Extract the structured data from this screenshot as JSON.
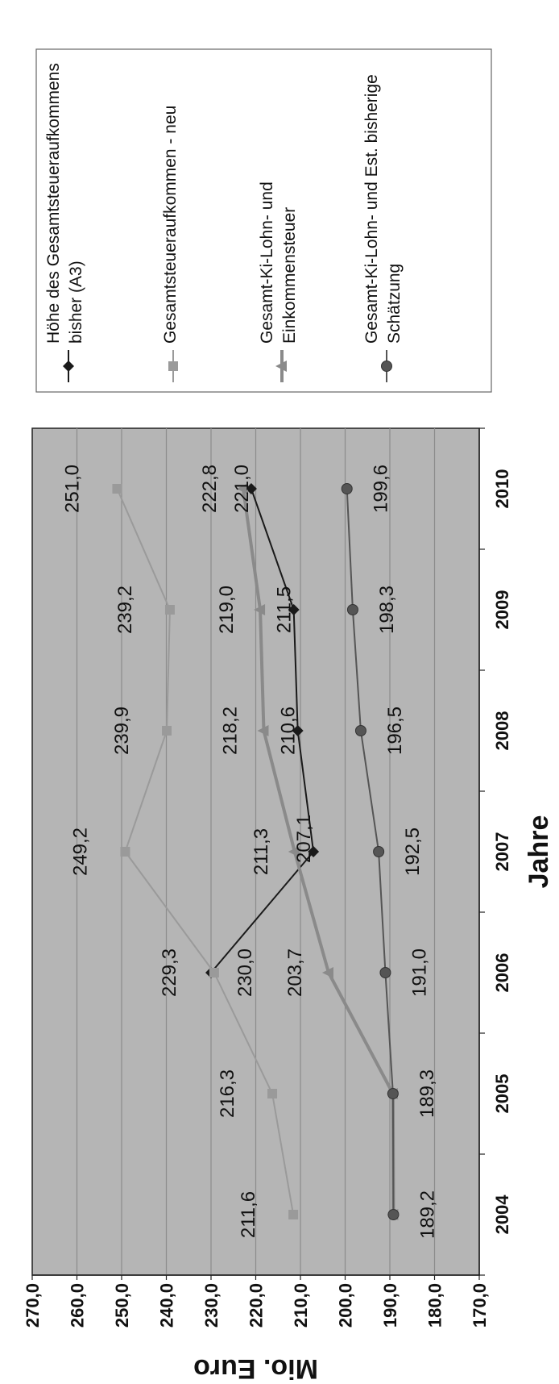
{
  "chart_data": {
    "type": "line",
    "title": "",
    "xlabel": "Jahre",
    "ylabel": "Mio. Euro",
    "ylim": [
      170,
      270
    ],
    "ytick_step": 10,
    "ytick_labels": [
      "170,0",
      "180,0",
      "190,0",
      "200,0",
      "210,0",
      "220,0",
      "230,0",
      "240,0",
      "250,0",
      "260,0",
      "270,0"
    ],
    "categories": [
      "2004",
      "2005",
      "2006",
      "2007",
      "2008",
      "2009",
      "2010"
    ],
    "grid": true,
    "plot_background": "#b5b5b5",
    "legend_position": "right",
    "series": [
      {
        "name": "Höhe des Gesamtsteueraufkommens bisher (A3)",
        "color": "#1a1a1a",
        "marker": "diamond",
        "values": [
          null,
          null,
          230.0,
          207.1,
          210.6,
          211.5,
          221.0
        ],
        "labels": [
          null,
          null,
          "230,0",
          "207,1",
          "210,6",
          "211,5",
          "221,0"
        ]
      },
      {
        "name": "Gesamtsteueraufkommen - neu",
        "color": "#9a9a9a",
        "marker": "square",
        "values": [
          211.6,
          216.3,
          229.3,
          249.2,
          239.9,
          239.2,
          251.0
        ],
        "labels": [
          "211,6",
          "216,3",
          "229,3",
          "249,2",
          "239,9",
          "239,2",
          "251,0"
        ]
      },
      {
        "name": "Gesamt-Ki-Lohn- und Einkommensteuer",
        "color": "#8a8a8a",
        "marker": "triangle",
        "values": [
          189.2,
          189.3,
          203.7,
          211.3,
          218.2,
          219.0,
          222.8
        ],
        "labels": [
          null,
          null,
          "203,7",
          "211,3",
          "218,2",
          "219,0",
          "222,8"
        ]
      },
      {
        "name": "Gesamt-Ki-Lohn- und Est. bisherige Schätzung",
        "color": "#555555",
        "marker": "circle",
        "values": [
          189.2,
          189.3,
          191.0,
          192.5,
          196.5,
          198.3,
          199.6
        ],
        "labels": [
          "189,2",
          "189,3",
          "191,0",
          "192,5",
          "196,5",
          "198,3",
          "199,6"
        ]
      }
    ]
  }
}
